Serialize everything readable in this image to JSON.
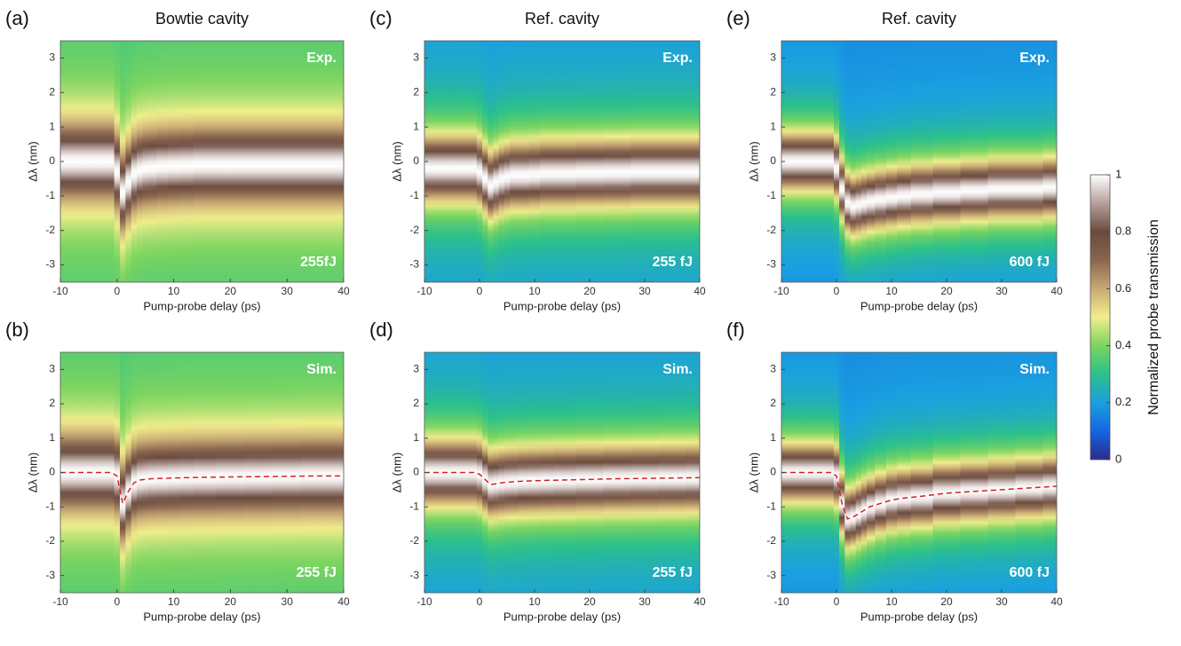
{
  "chart_data": [
    {
      "type": "heatmap",
      "panel_label": "(a)",
      "title": "Bowtie cavity",
      "annotation": "Exp.",
      "energy_label": "255fJ",
      "xlabel": "Pump-probe delay (ps)",
      "ylabel": "Δλ (nm)",
      "xlim": [
        -10,
        40
      ],
      "ylim": [
        -3.5,
        3.5
      ],
      "xticks": [
        -10,
        0,
        10,
        20,
        30,
        40
      ],
      "yticks": [
        -3,
        -2,
        -1,
        0,
        1,
        2,
        3
      ],
      "x": [
        -10,
        -5,
        -1,
        0,
        1,
        2,
        3,
        4,
        5,
        6,
        8,
        10,
        12,
        15,
        20,
        25,
        30,
        35,
        40
      ],
      "center": [
        0,
        0,
        0,
        -0.3,
        -0.9,
        -0.6,
        -0.35,
        -0.25,
        -0.2,
        -0.18,
        -0.15,
        -0.13,
        -0.12,
        -0.1,
        -0.1,
        -0.1,
        -0.1,
        -0.1,
        -0.1
      ]
    },
    {
      "type": "heatmap",
      "panel_label": "(b)",
      "annotation": "Sim.",
      "energy_label": "255 fJ",
      "xlabel": "Pump-probe delay (ps)",
      "ylabel": "Δλ (nm)",
      "xlim": [
        -10,
        40
      ],
      "ylim": [
        -3.5,
        3.5
      ],
      "xticks": [
        -10,
        0,
        10,
        20,
        30,
        40
      ],
      "yticks": [
        -3,
        -2,
        -1,
        0,
        1,
        2,
        3
      ],
      "x": [
        -10,
        -5,
        -1,
        0,
        1,
        2,
        3,
        4,
        5,
        6,
        8,
        10,
        12,
        15,
        20,
        25,
        30,
        35,
        40
      ],
      "center": [
        0,
        0,
        0,
        -0.1,
        -0.9,
        -0.55,
        -0.3,
        -0.22,
        -0.2,
        -0.18,
        -0.17,
        -0.16,
        -0.15,
        -0.14,
        -0.13,
        -0.12,
        -0.11,
        -0.1,
        -0.1
      ],
      "line_color": "#d62020"
    },
    {
      "type": "heatmap",
      "panel_label": "(c)",
      "title": "Ref. cavity",
      "annotation": "Exp.",
      "energy_label": "255 fJ",
      "xlabel": "Pump-probe delay (ps)",
      "ylabel": "Δλ (nm)",
      "xlim": [
        -10,
        40
      ],
      "ylim": [
        -3.5,
        3.5
      ],
      "xticks": [
        -10,
        0,
        10,
        20,
        30,
        40
      ],
      "yticks": [
        -3,
        -2,
        -1,
        0,
        1,
        2,
        3
      ],
      "x": [
        -10,
        -5,
        -1,
        0,
        1,
        2,
        3,
        4,
        5,
        6,
        8,
        10,
        12,
        15,
        20,
        25,
        30,
        35,
        40
      ],
      "center": [
        -0.2,
        -0.2,
        -0.2,
        -0.3,
        -0.5,
        -0.7,
        -0.6,
        -0.5,
        -0.45,
        -0.4,
        -0.4,
        -0.38,
        -0.35,
        -0.35,
        -0.33,
        -0.32,
        -0.3,
        -0.3,
        -0.3
      ]
    },
    {
      "type": "heatmap",
      "panel_label": "(d)",
      "annotation": "Sim.",
      "energy_label": "255 fJ",
      "xlabel": "Pump-probe delay (ps)",
      "ylabel": "Δλ (nm)",
      "xlim": [
        -10,
        40
      ],
      "ylim": [
        -3.5,
        3.5
      ],
      "xticks": [
        -10,
        0,
        10,
        20,
        30,
        40
      ],
      "yticks": [
        -3,
        -2,
        -1,
        0,
        1,
        2,
        3
      ],
      "x": [
        -10,
        -5,
        -1,
        0,
        1,
        2,
        3,
        4,
        5,
        6,
        8,
        10,
        12,
        15,
        20,
        25,
        30,
        35,
        40
      ],
      "center": [
        0,
        0,
        0,
        -0.05,
        -0.2,
        -0.35,
        -0.33,
        -0.3,
        -0.28,
        -0.27,
        -0.25,
        -0.24,
        -0.23,
        -0.22,
        -0.2,
        -0.18,
        -0.17,
        -0.16,
        -0.15
      ],
      "line_color": "#d62020"
    },
    {
      "type": "heatmap",
      "panel_label": "(e)",
      "title": "Ref. cavity",
      "annotation": "Exp.",
      "energy_label": "600 fJ",
      "xlabel": "Pump-probe delay (ps)",
      "ylabel": "Δλ (nm)",
      "xlim": [
        -10,
        40
      ],
      "ylim": [
        -3.5,
        3.5
      ],
      "xticks": [
        -10,
        0,
        10,
        20,
        30,
        40
      ],
      "yticks": [
        -3,
        -2,
        -1,
        0,
        1,
        2,
        3
      ],
      "x": [
        -10,
        -5,
        -1,
        0,
        1,
        2,
        3,
        4,
        5,
        6,
        8,
        10,
        12,
        15,
        20,
        25,
        30,
        35,
        40
      ],
      "center": [
        0,
        0,
        0,
        -0.2,
        -0.8,
        -1.2,
        -1.3,
        -1.25,
        -1.2,
        -1.15,
        -1.1,
        -1.05,
        -1.0,
        -0.95,
        -0.9,
        -0.85,
        -0.8,
        -0.8,
        -0.75
      ]
    },
    {
      "type": "heatmap",
      "panel_label": "(f)",
      "annotation": "Sim.",
      "energy_label": "600 fJ",
      "xlabel": "Pump-probe delay (ps)",
      "ylabel": "Δλ (nm)",
      "xlim": [
        -10,
        40
      ],
      "ylim": [
        -3.5,
        3.5
      ],
      "xticks": [
        -10,
        0,
        10,
        20,
        30,
        40
      ],
      "yticks": [
        -3,
        -2,
        -1,
        0,
        1,
        2,
        3
      ],
      "x": [
        -10,
        -5,
        -1,
        0,
        1,
        2,
        3,
        4,
        5,
        6,
        8,
        10,
        12,
        15,
        20,
        25,
        30,
        35,
        40
      ],
      "center": [
        0,
        0,
        0,
        -0.1,
        -0.9,
        -1.35,
        -1.3,
        -1.2,
        -1.1,
        -1.0,
        -0.9,
        -0.8,
        -0.75,
        -0.7,
        -0.6,
        -0.55,
        -0.5,
        -0.45,
        -0.4
      ],
      "line_color": "#d62020"
    },
    {
      "type": "colorbar",
      "label": "Normalized probe transmission",
      "clim": [
        0,
        1
      ],
      "ticks": [
        0,
        0.2,
        0.4,
        0.6,
        0.8,
        1
      ],
      "colormap": [
        "#2b2a8c",
        "#1466e0",
        "#1aa0e0",
        "#2cc08a",
        "#7ad460",
        "#f2ee8c",
        "#c8aa74",
        "#8a6650",
        "#6a4a3e",
        "#b4a09a",
        "#ffffff"
      ]
    }
  ]
}
